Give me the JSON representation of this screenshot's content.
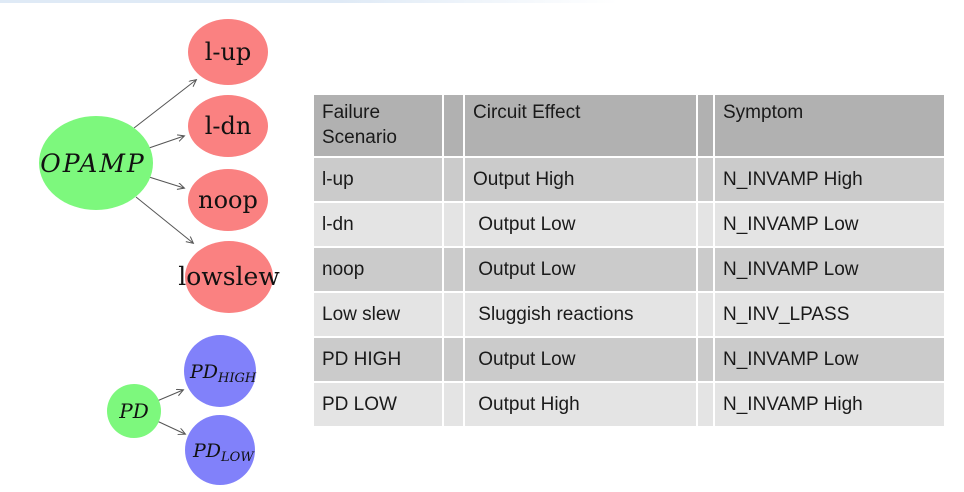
{
  "page": {
    "top_strip_color": "#dfeaf6"
  },
  "diagram": {
    "arrow_color": "#555555",
    "opamp_tree": {
      "root": {
        "label": "OPAMP",
        "fill": "#7df87d"
      },
      "children": [
        {
          "label": "l-up",
          "fill": "#fa8181"
        },
        {
          "label": "l-dn",
          "fill": "#fa8181"
        },
        {
          "label": "noop",
          "fill": "#fa8181"
        },
        {
          "label": "lowslew",
          "fill": "#fa8181"
        }
      ]
    },
    "pd_tree": {
      "root": {
        "label": "PD",
        "fill": "#7df87d"
      },
      "children": [
        {
          "label": "PD",
          "sub": "HIGH",
          "fill": "#8181fa"
        },
        {
          "label": "PD",
          "sub": "LOW",
          "fill": "#8181fa"
        }
      ]
    }
  },
  "table": {
    "header_bg": "#b1b1b1",
    "row_bg_odd": "#cbcbcb",
    "row_bg_even": "#e4e4e4",
    "columns": [
      "Failure Scenario",
      "Circuit Effect",
      "Symptom"
    ],
    "rows": [
      {
        "scenario": "l-up",
        "effect": "Output High",
        "symptom": "N_INVAMP High"
      },
      {
        "scenario": "l-dn",
        "effect": " Output Low",
        "symptom": "N_INVAMP Low"
      },
      {
        "scenario": "noop",
        "effect": " Output Low",
        "symptom": "N_INVAMP Low"
      },
      {
        "scenario": "Low slew",
        "effect": " Sluggish reactions",
        "symptom": "N_INV_LPASS"
      },
      {
        "scenario": "PD HIGH",
        "effect": " Output Low",
        "symptom": "N_INVAMP Low"
      },
      {
        "scenario": "PD LOW",
        "effect": " Output High",
        "symptom": "N_INVAMP High"
      }
    ]
  }
}
